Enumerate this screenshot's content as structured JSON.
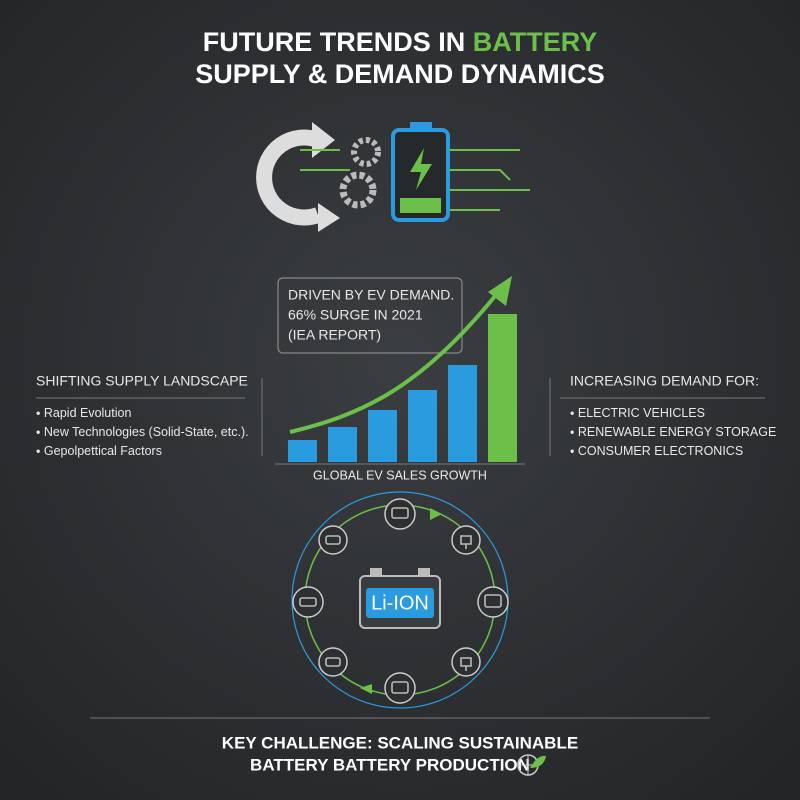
{
  "header": {
    "title_prefix": "FUTURE TRENDS IN",
    "title_highlight": "BATTERY",
    "title_line2": "SUPPLY & DEMAND DYNAMICS"
  },
  "callout": {
    "lines": [
      "DRIVEN BY EV DEMAND.",
      "66% SURGE IN 2021",
      "(IEA REPORT)"
    ]
  },
  "chart": {
    "type": "bar",
    "label": "GLOBAL EV SALES GROWTH",
    "values": [
      22,
      35,
      52,
      72,
      97,
      148
    ],
    "colors": [
      "#2b9be0",
      "#2b9be0",
      "#2b9be0",
      "#2b9be0",
      "#2b9be0",
      "#6cc04a"
    ]
  },
  "supply": {
    "heading": "SHIFTING SUPPLY LANDSCAPE",
    "items": [
      "Rapid Evolution",
      "New Technologies (Solid-State, etc.).",
      "Gepolpettical Factors"
    ]
  },
  "demand": {
    "heading": "INCREASING DEMAND FOR:",
    "items": [
      "ELECTRIC VEHICLES",
      "RENEWABLE ENERGY STORAGE",
      "CONSUMER ELECTRONICS"
    ]
  },
  "cycle": {
    "center": "Li-ION"
  },
  "footer": {
    "line1": "KEY CHALLENGE:  SCALING SUSTAINABLE",
    "line2": "BATTERY BATTERY PRODUCTION"
  }
}
